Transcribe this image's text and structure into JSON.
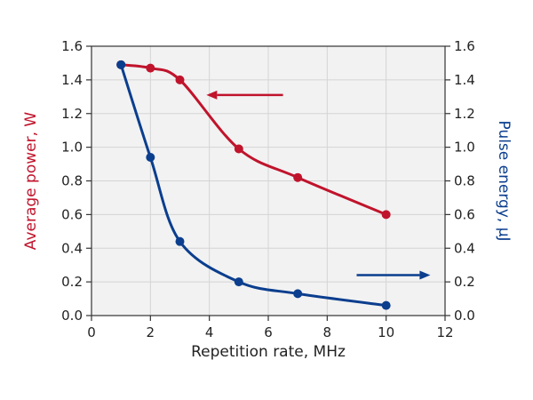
{
  "chart_data": {
    "type": "line",
    "xlabel": "Repetition rate, MHz",
    "ylabel_left": "Average power, W",
    "ylabel_right": "Pulse energy, µJ",
    "xlim": [
      0,
      12
    ],
    "ylim_left": [
      0,
      1.6
    ],
    "ylim_right": [
      0,
      1.6
    ],
    "x_ticks": [
      "0",
      "2",
      "4",
      "6",
      "8",
      "10",
      "12"
    ],
    "y_ticks_left": [
      "0.0",
      "0.2",
      "0.4",
      "0.6",
      "0.8",
      "1.0",
      "1.2",
      "1.4",
      "1.6"
    ],
    "y_ticks_right": [
      "0.0",
      "0.2",
      "0.4",
      "0.6",
      "0.8",
      "1.0",
      "1.2",
      "1.4",
      "1.6"
    ],
    "grid": true,
    "series": [
      {
        "axis": "left",
        "color": "#c0142c",
        "x": [
          1,
          2,
          3,
          5,
          7,
          10
        ],
        "values": [
          1.49,
          1.47,
          1.4,
          0.99,
          0.82,
          0.6
        ]
      },
      {
        "axis": "right",
        "color": "#0b3e8e",
        "x": [
          1,
          2,
          3,
          5,
          7,
          10
        ],
        "values": [
          1.49,
          0.94,
          0.44,
          0.2,
          0.13,
          0.06
        ]
      }
    ],
    "annotations": [
      {
        "type": "arrow",
        "direction": "left",
        "series_axis": "left",
        "color": "#c0142c"
      },
      {
        "type": "arrow",
        "direction": "right",
        "series_axis": "right",
        "color": "#0b3e8e"
      }
    ],
    "colors": {
      "left_axis": "#c0142c",
      "right_axis": "#0b3e8e",
      "plot_bg": "#f2f2f2",
      "grid": "#d4d4d4"
    }
  }
}
